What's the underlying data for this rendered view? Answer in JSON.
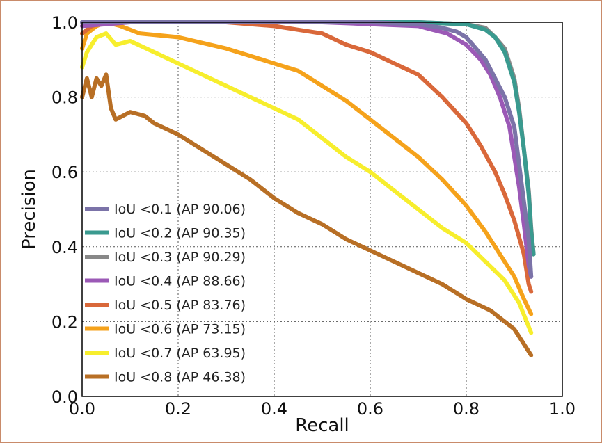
{
  "chart_data": {
    "type": "line",
    "title": "",
    "xlabel": "Recall",
    "ylabel": "Precision",
    "xlim": [
      0.0,
      1.0
    ],
    "ylim": [
      0.0,
      1.0
    ],
    "grid": true,
    "legend_position": "lower-left",
    "xticks": [
      "0.0",
      "0.2",
      "0.4",
      "0.6",
      "0.8",
      "1.0"
    ],
    "yticks": [
      "0.0",
      "0.2",
      "0.4",
      "0.6",
      "0.8",
      "1.0"
    ],
    "series": [
      {
        "name": "IoU <0.1 (AP 90.06)",
        "color": "#7b73a8",
        "points": [
          [
            0.0,
            1.0
          ],
          [
            0.3,
            1.0
          ],
          [
            0.6,
            1.0
          ],
          [
            0.7,
            0.995
          ],
          [
            0.75,
            0.985
          ],
          [
            0.78,
            0.975
          ],
          [
            0.8,
            0.96
          ],
          [
            0.82,
            0.93
          ],
          [
            0.84,
            0.9
          ],
          [
            0.86,
            0.85
          ],
          [
            0.88,
            0.8
          ],
          [
            0.9,
            0.72
          ],
          [
            0.91,
            0.62
          ],
          [
            0.92,
            0.52
          ],
          [
            0.93,
            0.42
          ],
          [
            0.935,
            0.32
          ]
        ]
      },
      {
        "name": "IoU <0.2 (AP 90.35)",
        "color": "#3a9a8f",
        "points": [
          [
            0.0,
            1.0
          ],
          [
            0.4,
            1.0
          ],
          [
            0.7,
            1.0
          ],
          [
            0.8,
            0.995
          ],
          [
            0.84,
            0.98
          ],
          [
            0.86,
            0.96
          ],
          [
            0.88,
            0.92
          ],
          [
            0.9,
            0.84
          ],
          [
            0.91,
            0.76
          ],
          [
            0.92,
            0.66
          ],
          [
            0.93,
            0.54
          ],
          [
            0.935,
            0.44
          ],
          [
            0.94,
            0.38
          ]
        ]
      },
      {
        "name": "IoU <0.3 (AP 90.29)",
        "color": "#888888",
        "points": [
          [
            0.0,
            1.0
          ],
          [
            0.4,
            1.0
          ],
          [
            0.7,
            1.0
          ],
          [
            0.8,
            0.995
          ],
          [
            0.84,
            0.985
          ],
          [
            0.86,
            0.96
          ],
          [
            0.88,
            0.93
          ],
          [
            0.9,
            0.85
          ],
          [
            0.91,
            0.77
          ],
          [
            0.92,
            0.66
          ],
          [
            0.93,
            0.55
          ],
          [
            0.935,
            0.45
          ],
          [
            0.94,
            0.38
          ]
        ]
      },
      {
        "name": "IoU <0.4 (AP 88.66)",
        "color": "#9b59b6",
        "points": [
          [
            0.0,
            0.99
          ],
          [
            0.1,
            1.0
          ],
          [
            0.3,
            1.0
          ],
          [
            0.5,
            1.0
          ],
          [
            0.6,
            0.995
          ],
          [
            0.7,
            0.99
          ],
          [
            0.73,
            0.98
          ],
          [
            0.76,
            0.97
          ],
          [
            0.8,
            0.94
          ],
          [
            0.83,
            0.9
          ],
          [
            0.85,
            0.86
          ],
          [
            0.87,
            0.8
          ],
          [
            0.89,
            0.72
          ],
          [
            0.9,
            0.64
          ],
          [
            0.91,
            0.56
          ],
          [
            0.92,
            0.46
          ],
          [
            0.93,
            0.35
          ],
          [
            0.935,
            0.32
          ]
        ]
      },
      {
        "name": "IoU <0.5 (AP 83.76)",
        "color": "#d9683a",
        "points": [
          [
            0.0,
            0.97
          ],
          [
            0.02,
            0.99
          ],
          [
            0.05,
            1.0
          ],
          [
            0.15,
            1.0
          ],
          [
            0.3,
            1.0
          ],
          [
            0.4,
            0.99
          ],
          [
            0.45,
            0.98
          ],
          [
            0.5,
            0.97
          ],
          [
            0.55,
            0.94
          ],
          [
            0.6,
            0.92
          ],
          [
            0.65,
            0.89
          ],
          [
            0.7,
            0.86
          ],
          [
            0.75,
            0.8
          ],
          [
            0.8,
            0.73
          ],
          [
            0.83,
            0.67
          ],
          [
            0.86,
            0.6
          ],
          [
            0.88,
            0.54
          ],
          [
            0.9,
            0.47
          ],
          [
            0.92,
            0.38
          ],
          [
            0.93,
            0.3
          ],
          [
            0.935,
            0.28
          ]
        ]
      },
      {
        "name": "IoU <0.6 (AP 73.15)",
        "color": "#f5a21b",
        "points": [
          [
            0.0,
            0.93
          ],
          [
            0.01,
            0.97
          ],
          [
            0.03,
            0.99
          ],
          [
            0.05,
            1.0
          ],
          [
            0.08,
            0.99
          ],
          [
            0.12,
            0.97
          ],
          [
            0.2,
            0.96
          ],
          [
            0.3,
            0.93
          ],
          [
            0.35,
            0.91
          ],
          [
            0.4,
            0.89
          ],
          [
            0.45,
            0.87
          ],
          [
            0.5,
            0.83
          ],
          [
            0.55,
            0.79
          ],
          [
            0.6,
            0.74
          ],
          [
            0.65,
            0.69
          ],
          [
            0.7,
            0.64
          ],
          [
            0.75,
            0.58
          ],
          [
            0.8,
            0.51
          ],
          [
            0.84,
            0.44
          ],
          [
            0.87,
            0.38
          ],
          [
            0.9,
            0.32
          ],
          [
            0.92,
            0.26
          ],
          [
            0.935,
            0.22
          ]
        ]
      },
      {
        "name": "IoU <0.7 (AP 63.95)",
        "color": "#f7ee2d",
        "points": [
          [
            0.0,
            0.88
          ],
          [
            0.01,
            0.92
          ],
          [
            0.03,
            0.96
          ],
          [
            0.05,
            0.97
          ],
          [
            0.07,
            0.94
          ],
          [
            0.1,
            0.95
          ],
          [
            0.15,
            0.92
          ],
          [
            0.2,
            0.89
          ],
          [
            0.25,
            0.86
          ],
          [
            0.3,
            0.83
          ],
          [
            0.35,
            0.8
          ],
          [
            0.4,
            0.77
          ],
          [
            0.45,
            0.74
          ],
          [
            0.5,
            0.69
          ],
          [
            0.55,
            0.64
          ],
          [
            0.6,
            0.6
          ],
          [
            0.65,
            0.55
          ],
          [
            0.7,
            0.5
          ],
          [
            0.75,
            0.45
          ],
          [
            0.8,
            0.41
          ],
          [
            0.84,
            0.36
          ],
          [
            0.88,
            0.31
          ],
          [
            0.91,
            0.25
          ],
          [
            0.935,
            0.17
          ]
        ]
      },
      {
        "name": "IoU <0.8 (AP 46.38)",
        "color": "#b86f25",
        "points": [
          [
            0.0,
            0.8
          ],
          [
            0.01,
            0.85
          ],
          [
            0.02,
            0.8
          ],
          [
            0.03,
            0.85
          ],
          [
            0.04,
            0.83
          ],
          [
            0.05,
            0.86
          ],
          [
            0.06,
            0.77
          ],
          [
            0.07,
            0.74
          ],
          [
            0.1,
            0.76
          ],
          [
            0.13,
            0.75
          ],
          [
            0.15,
            0.73
          ],
          [
            0.2,
            0.7
          ],
          [
            0.25,
            0.66
          ],
          [
            0.3,
            0.62
          ],
          [
            0.35,
            0.58
          ],
          [
            0.4,
            0.53
          ],
          [
            0.45,
            0.49
          ],
          [
            0.5,
            0.46
          ],
          [
            0.55,
            0.42
          ],
          [
            0.6,
            0.39
          ],
          [
            0.65,
            0.36
          ],
          [
            0.7,
            0.33
          ],
          [
            0.75,
            0.3
          ],
          [
            0.8,
            0.26
          ],
          [
            0.85,
            0.23
          ],
          [
            0.9,
            0.18
          ],
          [
            0.935,
            0.11
          ]
        ]
      }
    ]
  }
}
